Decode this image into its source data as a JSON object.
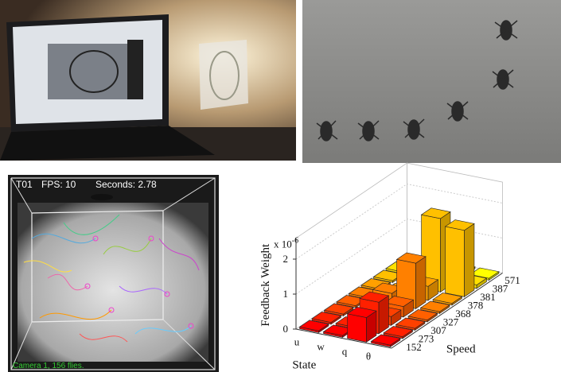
{
  "panels": {
    "arena": {
      "trial": "T01",
      "fps": "FPS: 10",
      "seconds": "Seconds: 2.78",
      "caption": "Camera 1, 156 flies."
    }
  },
  "chart_data": {
    "type": "bar3d",
    "zlabel": "Feedback Weight",
    "multiplier": {
      "base": "x 10",
      "exponent": "-6"
    },
    "xlabel": "State",
    "ylabel": "Speed",
    "categories": [
      "u",
      "w",
      "q",
      "θ"
    ],
    "speeds": [
      "152",
      "273",
      "307",
      "327",
      "368",
      "378",
      "381",
      "387",
      "571"
    ],
    "colors": [
      "#ff0000",
      "#ff2000",
      "#ff4000",
      "#ff6000",
      "#ff8000",
      "#ffa000",
      "#ffc000",
      "#ffe000",
      "#ffff00"
    ],
    "values": [
      [
        0.05,
        0.05,
        0.05,
        0.05,
        0.05,
        0.05,
        0.05,
        0.05,
        0.05
      ],
      [
        0.05,
        0.05,
        0.05,
        0.05,
        0.3,
        0.05,
        0.05,
        0.05,
        0.05
      ],
      [
        0.7,
        0.9,
        0.25,
        0.3,
        1.3,
        0.4,
        2.1,
        0.35,
        0.05
      ],
      [
        0.05,
        0.05,
        0.05,
        0.05,
        0.05,
        0.05,
        1.9,
        0.1,
        0.05
      ]
    ],
    "zlim": [
      0,
      2.6
    ],
    "zticks": [
      0,
      1,
      2
    ],
    "grid": true
  }
}
